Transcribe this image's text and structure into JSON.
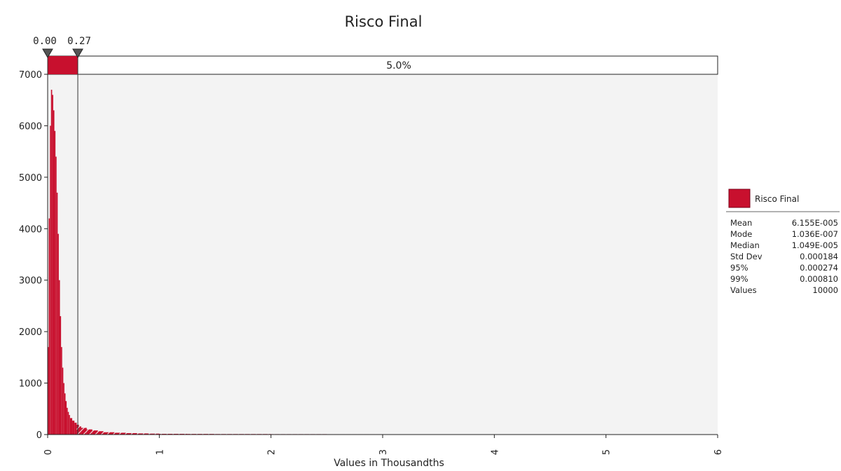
{
  "chart_data": {
    "type": "bar",
    "title": "Risco Final",
    "xlabel": "Values in Thousandths",
    "ylabel": "",
    "xlim": [
      0,
      6
    ],
    "ylim": [
      0,
      7000
    ],
    "x_ticks": [
      "0",
      "1",
      "2",
      "3",
      "4",
      "5",
      "6"
    ],
    "y_ticks": [
      "0",
      "1000",
      "2000",
      "3000",
      "4000",
      "5000",
      "6000",
      "7000"
    ],
    "grid": false,
    "legend_position": "right",
    "colors": {
      "bar": "#c8102e",
      "bar_dark": "#7a0019",
      "plot_bg": "#f3f3f3"
    },
    "percentile_markers": {
      "left_label": "0.00",
      "right_label": "0.27",
      "left_value": 0.0,
      "right_value": 0.27,
      "band_text": "5.0%"
    },
    "series": [
      {
        "name": "Risco Final",
        "x": [
          0.01,
          0.02,
          0.03,
          0.04,
          0.05,
          0.06,
          0.07,
          0.08,
          0.09,
          0.1,
          0.11,
          0.12,
          0.13,
          0.14,
          0.15,
          0.16,
          0.17,
          0.18,
          0.19,
          0.2,
          0.22,
          0.24,
          0.26,
          0.28,
          0.3,
          0.35,
          0.4,
          0.45,
          0.5,
          0.6,
          0.7,
          0.8,
          0.9,
          1.0,
          1.25,
          1.5,
          2.0,
          2.5,
          3.0,
          4.0,
          5.0,
          6.0
        ],
        "values": [
          1700,
          4200,
          6000,
          6700,
          6600,
          6300,
          5900,
          5400,
          4700,
          3900,
          3000,
          2300,
          1700,
          1300,
          1000,
          800,
          650,
          520,
          440,
          380,
          320,
          270,
          230,
          190,
          160,
          130,
          100,
          80,
          65,
          45,
          35,
          28,
          22,
          18,
          14,
          12,
          10,
          8,
          7,
          6,
          5,
          4
        ]
      }
    ],
    "legend": {
      "name": "Risco Final",
      "stats": [
        {
          "label": "Mean",
          "value": "6.155E-005"
        },
        {
          "label": "Mode",
          "value": "1.036E-007"
        },
        {
          "label": "Median",
          "value": "1.049E-005"
        },
        {
          "label": "Std Dev",
          "value": "0.000184"
        },
        {
          "label": "95%",
          "value": "0.000274"
        },
        {
          "label": "99%",
          "value": "0.000810"
        },
        {
          "label": "Values",
          "value": "10000"
        }
      ]
    }
  }
}
